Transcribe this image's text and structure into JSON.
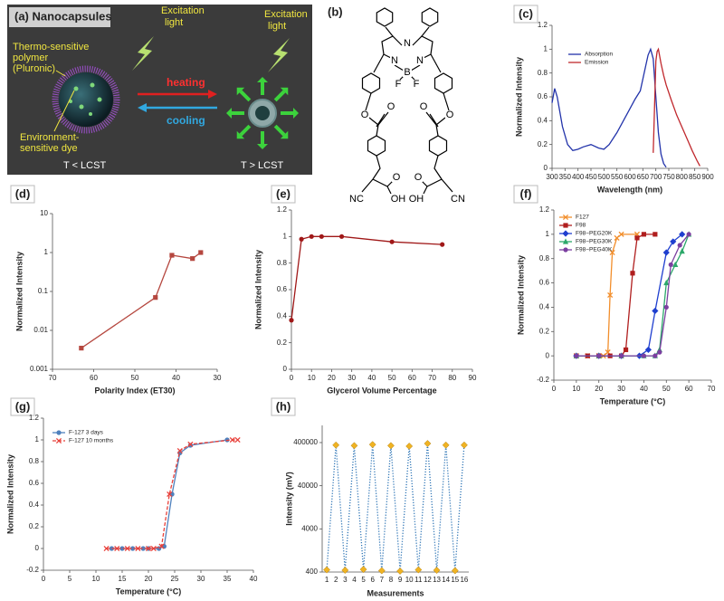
{
  "diagram": {
    "panel_label": "(a) Nanocapsules",
    "texts": [
      "Excitation",
      "light",
      "Excitation",
      "light",
      "Thermo-sensitive",
      "polymer",
      "(Pluronic)",
      "heating",
      "cooling",
      "Environment-",
      "sensitive dye",
      "T < LCST",
      "T > LCST"
    ]
  },
  "structure": {
    "panel_label": "(b)",
    "atoms": [
      "N",
      "N",
      "N",
      "B",
      "F",
      "F",
      "O",
      "O",
      "O",
      "O",
      "O",
      "O",
      "OH",
      "OH",
      "NC",
      "CN"
    ]
  },
  "chart_data": [
    {
      "type": "line",
      "panel_label": "(c)",
      "xlabel": "Wavelength (nm)",
      "ylabel": "Normalized Intensity",
      "xlim": [
        300,
        900
      ],
      "xticks": [
        300,
        350,
        400,
        450,
        500,
        550,
        600,
        650,
        700,
        750,
        800,
        850,
        900
      ],
      "ylim": [
        0,
        1.2
      ],
      "yticks": [
        0,
        0.2,
        0.4,
        0.6,
        0.8,
        1,
        1.2
      ],
      "series": [
        {
          "name": "Absorption",
          "color": "#2233aa",
          "x": [
            300,
            310,
            320,
            340,
            360,
            380,
            400,
            420,
            450,
            480,
            500,
            520,
            550,
            580,
            600,
            620,
            640,
            660,
            670,
            680,
            690,
            700,
            710,
            720,
            730,
            740
          ],
          "values": [
            0.55,
            0.67,
            0.6,
            0.35,
            0.2,
            0.15,
            0.16,
            0.18,
            0.2,
            0.17,
            0.16,
            0.2,
            0.3,
            0.42,
            0.5,
            0.58,
            0.65,
            0.85,
            0.95,
            1.0,
            0.92,
            0.6,
            0.3,
            0.12,
            0.04,
            0.01
          ]
        },
        {
          "name": "Emission",
          "color": "#c0282d",
          "x": [
            690,
            695,
            700,
            705,
            710,
            720,
            730,
            740,
            760,
            780,
            800,
            820,
            840,
            860,
            870
          ],
          "values": [
            0.13,
            0.5,
            0.9,
            0.98,
            1.0,
            0.88,
            0.78,
            0.7,
            0.57,
            0.45,
            0.35,
            0.25,
            0.15,
            0.06,
            0.02
          ]
        }
      ]
    },
    {
      "type": "line",
      "panel_label": "(d)",
      "xlabel": "Polarity Index (ET30)",
      "ylabel": "Normalized Intensity",
      "xlim": [
        70,
        30
      ],
      "xticks": [
        70,
        60,
        50,
        40,
        30
      ],
      "ylim": [
        0.001,
        10
      ],
      "yticks": [
        0.001,
        0.01,
        0.1,
        1,
        10
      ],
      "log_y": true,
      "series": [
        {
          "color": "#b5473f",
          "marker": "square",
          "x": [
            63,
            45,
            41,
            36,
            34
          ],
          "values": [
            0.0035,
            0.07,
            0.85,
            0.7,
            1.0
          ]
        }
      ]
    },
    {
      "type": "line",
      "panel_label": "(e)",
      "xlabel": "Glycerol Volume Percentage",
      "ylabel": "Normalized Intensity",
      "xlim": [
        0,
        90
      ],
      "xticks": [
        0,
        10,
        20,
        30,
        40,
        50,
        60,
        70,
        80,
        90
      ],
      "ylim": [
        0,
        1.2
      ],
      "yticks": [
        0,
        0.2,
        0.4,
        0.6,
        0.8,
        1,
        1.2
      ],
      "series": [
        {
          "color": "#a01818",
          "marker": "circle",
          "x": [
            0,
            5,
            10,
            15,
            25,
            50,
            75
          ],
          "values": [
            0.37,
            0.98,
            1.0,
            1.0,
            1.0,
            0.96,
            0.94
          ]
        }
      ]
    },
    {
      "type": "line",
      "panel_label": "(f)",
      "xlabel": "Temperature (°C)",
      "ylabel": "Normalized Intensity",
      "xlim": [
        0,
        70
      ],
      "xticks": [
        0,
        10,
        20,
        30,
        40,
        50,
        60,
        70
      ],
      "ylim": [
        -0.2,
        1.2
      ],
      "yticks": [
        -0.2,
        0,
        0.2,
        0.4,
        0.6,
        0.8,
        1,
        1.2
      ],
      "series": [
        {
          "name": "F127",
          "color": "#f28e2b",
          "marker": "x",
          "x": [
            10,
            15,
            20,
            22,
            24,
            25,
            26,
            28,
            30,
            37
          ],
          "values": [
            0,
            0,
            0,
            0,
            0.03,
            0.5,
            0.85,
            0.97,
            1,
            1
          ]
        },
        {
          "name": "F98",
          "color": "#b01e1e",
          "marker": "square",
          "x": [
            10,
            15,
            20,
            25,
            30,
            32,
            35,
            37,
            40,
            45
          ],
          "values": [
            0,
            0,
            0,
            0,
            0,
            0.05,
            0.68,
            0.97,
            1,
            1
          ]
        },
        {
          "name": "F98−PEG20K",
          "color": "#1f3fcf",
          "marker": "diamond",
          "x": [
            10,
            20,
            30,
            38,
            42,
            45,
            50,
            53,
            57
          ],
          "values": [
            0,
            0,
            0,
            0,
            0.05,
            0.37,
            0.85,
            0.94,
            1
          ]
        },
        {
          "name": "F98−PEG30K",
          "color": "#2ca86a",
          "marker": "triangle",
          "x": [
            10,
            20,
            30,
            40,
            45,
            47,
            50,
            54,
            57,
            60
          ],
          "values": [
            0,
            0,
            0,
            0,
            0,
            0.05,
            0.6,
            0.75,
            0.86,
            1
          ]
        },
        {
          "name": "F98−PEG40K",
          "color": "#7b3fa0",
          "marker": "circle",
          "x": [
            10,
            20,
            30,
            40,
            45,
            47,
            50,
            52,
            56,
            60
          ],
          "values": [
            0,
            0,
            0,
            0,
            0,
            0.03,
            0.4,
            0.75,
            0.91,
            1
          ]
        }
      ]
    },
    {
      "type": "line",
      "panel_label": "(g)",
      "xlabel": "Temperature (°C)",
      "ylabel": "Normalized Intensity",
      "xlim": [
        0,
        40
      ],
      "xticks": [
        0,
        5,
        10,
        15,
        20,
        25,
        30,
        35,
        40
      ],
      "ylim": [
        -0.2,
        1.2
      ],
      "yticks": [
        -0.2,
        0,
        0.2,
        0.4,
        0.6,
        0.8,
        1,
        1.2
      ],
      "series": [
        {
          "name": "F-127 3 days",
          "color": "#4f81bd",
          "marker": "circle",
          "x": [
            13,
            15,
            17,
            19,
            20,
            22,
            23,
            24.5,
            26,
            28,
            35
          ],
          "values": [
            0,
            0,
            0,
            0,
            0,
            0,
            0.02,
            0.5,
            0.88,
            0.95,
            1
          ]
        },
        {
          "name": "F-127 10 months",
          "color": "#e8403a",
          "marker": "x",
          "line_style": "dashed",
          "x": [
            12,
            14,
            16,
            18,
            20,
            21,
            22.5,
            24,
            26,
            28,
            36,
            37
          ],
          "values": [
            0,
            0,
            0,
            0,
            0,
            0,
            0.02,
            0.5,
            0.9,
            0.96,
            1,
            1
          ]
        }
      ]
    },
    {
      "type": "line",
      "panel_label": "(h)",
      "xlabel": "Measurements",
      "ylabel": "Intensity (mV)",
      "categories": [
        "1",
        "2",
        "3",
        "4",
        "5",
        "6",
        "7",
        "8",
        "9",
        "10",
        "11",
        "12",
        "13",
        "14",
        "15",
        "16"
      ],
      "ylim": [
        400,
        1000000
      ],
      "yticks": [
        400,
        4000,
        40000,
        400000
      ],
      "log_y": true,
      "series": [
        {
          "color": "#2e75b6",
          "line_style": "dotted",
          "marker": "diamond",
          "marker_color": "#f0b323",
          "values": [
            450,
            350000,
            440,
            340000,
            460,
            360000,
            430,
            340000,
            420,
            330000,
            450,
            380000,
            440,
            350000,
            430,
            350000
          ]
        }
      ]
    }
  ]
}
